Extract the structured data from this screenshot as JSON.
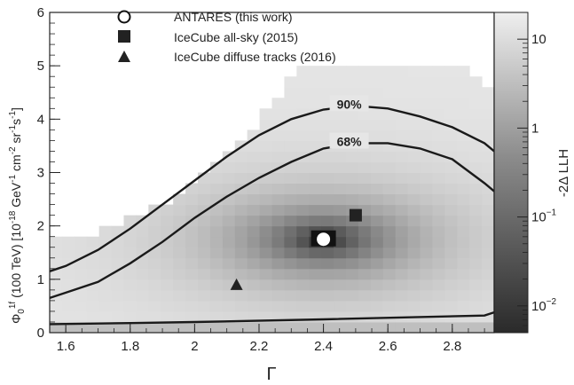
{
  "chart_data": {
    "type": "heatmap",
    "title": "",
    "xlabel": "Γ",
    "ylabel": {
      "symbol": "Φ",
      "sub": "0",
      "sup": "1f",
      "rest": " (100 TeV) [10",
      "exp1": "-18",
      "unit1": " GeV",
      "exp2": "-1",
      "unit2": " cm",
      "exp3": "-2",
      "unit3": " sr",
      "exp4": "-1",
      "unit4": "s",
      "exp5": "-1",
      "close": "]"
    },
    "xlim": [
      1.55,
      2.93
    ],
    "ylim": [
      0,
      6
    ],
    "xticks": [
      "1.6",
      "1.8",
      "2",
      "2.2",
      "2.4",
      "2.6",
      "2.8"
    ],
    "yticks": [
      "0",
      "1",
      "2",
      "3",
      "4",
      "5",
      "6"
    ],
    "colorbar": {
      "label": "-2Δ LLH",
      "scale": "log",
      "range": [
        0.005,
        20
      ],
      "ticks": [
        {
          "base": "10",
          "exp": ""
        },
        {
          "base": "1",
          "exp": ""
        },
        {
          "base": "10",
          "exp": "−1"
        },
        {
          "base": "10",
          "exp": "−2"
        }
      ]
    },
    "best_fit": {
      "gamma": 2.4,
      "phi": 1.75
    },
    "contours": [
      {
        "name": "90%",
        "upper": [
          [
            1.55,
            1.15
          ],
          [
            1.6,
            1.25
          ],
          [
            1.7,
            1.55
          ],
          [
            1.8,
            1.95
          ],
          [
            1.9,
            2.4
          ],
          [
            2.0,
            2.85
          ],
          [
            2.1,
            3.3
          ],
          [
            2.2,
            3.7
          ],
          [
            2.3,
            4.0
          ],
          [
            2.4,
            4.18
          ],
          [
            2.5,
            4.25
          ],
          [
            2.6,
            4.2
          ],
          [
            2.7,
            4.05
          ],
          [
            2.8,
            3.85
          ],
          [
            2.9,
            3.55
          ],
          [
            2.93,
            3.4
          ]
        ],
        "lower": [
          [
            1.55,
            0.16
          ],
          [
            1.8,
            0.18
          ],
          [
            2.0,
            0.2
          ],
          [
            2.4,
            0.25
          ],
          [
            2.9,
            0.32
          ],
          [
            2.93,
            0.38
          ]
        ]
      },
      {
        "name": "68%",
        "upper": [
          [
            1.55,
            0.65
          ],
          [
            1.6,
            0.75
          ],
          [
            1.7,
            0.95
          ],
          [
            1.8,
            1.3
          ],
          [
            1.9,
            1.7
          ],
          [
            2.0,
            2.15
          ],
          [
            2.1,
            2.55
          ],
          [
            2.2,
            2.9
          ],
          [
            2.3,
            3.2
          ],
          [
            2.4,
            3.45
          ],
          [
            2.5,
            3.55
          ],
          [
            2.6,
            3.55
          ],
          [
            2.7,
            3.45
          ],
          [
            2.8,
            3.25
          ],
          [
            2.9,
            2.8
          ],
          [
            2.93,
            2.65
          ]
        ]
      }
    ],
    "series": [
      {
        "name": "ANTARES (this work)",
        "marker": "circle-open",
        "points": [
          [
            2.4,
            1.75
          ]
        ]
      },
      {
        "name": "IceCube all-sky (2015)",
        "marker": "square",
        "points": [
          [
            2.5,
            2.2
          ]
        ]
      },
      {
        "name": "IceCube diffuse tracks (2016)",
        "marker": "triangle",
        "points": [
          [
            2.13,
            0.9
          ]
        ]
      }
    ]
  }
}
